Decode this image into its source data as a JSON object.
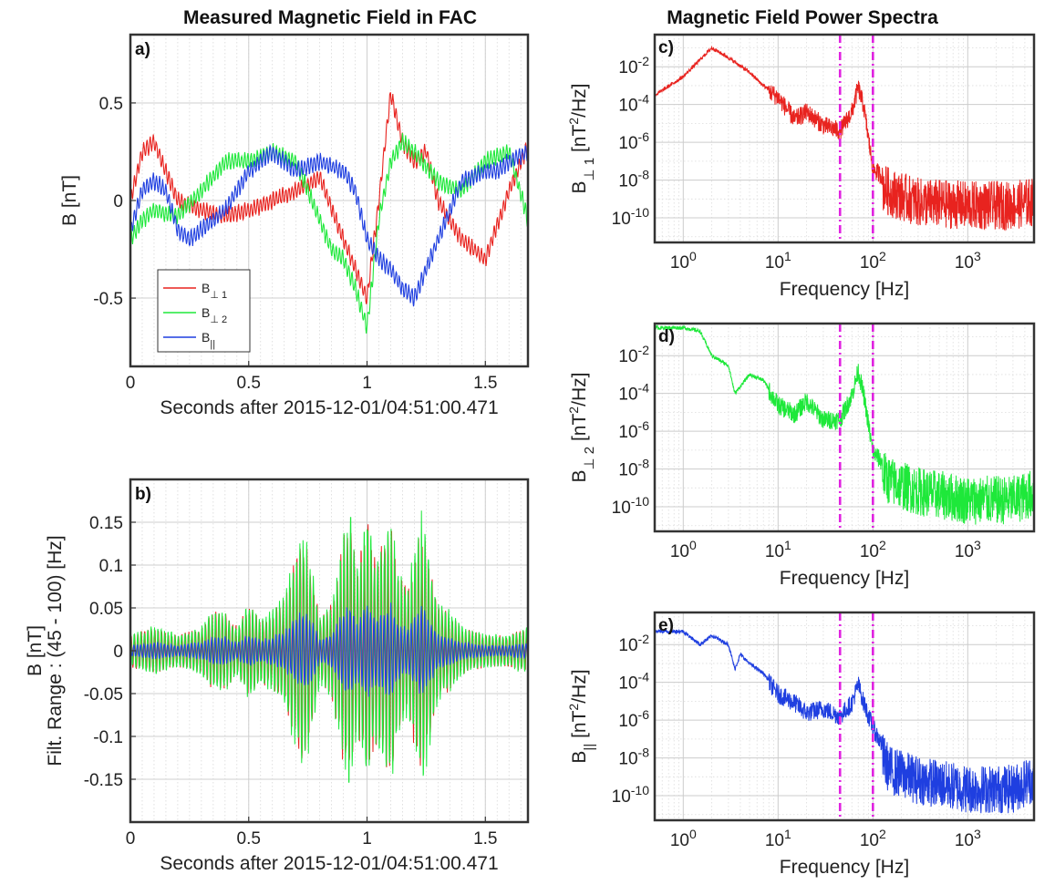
{
  "titles": {
    "left": "Measured Magnetic Field in FAC",
    "right": "Magnetic Field Power Spectra"
  },
  "colors": {
    "red": "#e8231f",
    "green": "#1ee83a",
    "blue": "#1f3fe0",
    "magenta": "#e022e0"
  },
  "chart_data": [
    {
      "panel": "a)",
      "type": "line",
      "xlabel": "Seconds after 2015-12-01/04:51:00.471",
      "ylabel": "B [nT]",
      "xlim": [
        0,
        1.68
      ],
      "ylim": [
        -0.85,
        0.85
      ],
      "xticks": [
        0,
        0.5,
        1,
        1.5
      ],
      "xtick_labels": [
        "0",
        "0.5",
        "1",
        "1.5"
      ],
      "yticks": [
        -0.5,
        0,
        0.5
      ],
      "ytick_labels": [
        "-0.5",
        "0",
        "0.5"
      ],
      "grid": true,
      "legend": "bottom-left",
      "series": [
        {
          "name": "B⊥ 1",
          "color": "red",
          "x": [
            0,
            0.05,
            0.1,
            0.15,
            0.2,
            0.3,
            0.4,
            0.5,
            0.6,
            0.7,
            0.8,
            0.9,
            0.95,
            1.0,
            1.05,
            1.1,
            1.15,
            1.2,
            1.25,
            1.3,
            1.4,
            1.5,
            1.6,
            1.68
          ],
          "y": [
            0.0,
            0.25,
            0.3,
            0.15,
            0.0,
            -0.05,
            -0.08,
            -0.05,
            0.0,
            0.05,
            0.12,
            -0.2,
            -0.35,
            -0.5,
            0.0,
            0.55,
            0.3,
            0.2,
            0.25,
            0.0,
            -0.2,
            -0.3,
            0.05,
            0.28
          ]
        },
        {
          "name": "B⊥ 2",
          "color": "green",
          "x": [
            0,
            0.05,
            0.1,
            0.2,
            0.3,
            0.4,
            0.5,
            0.6,
            0.7,
            0.8,
            0.85,
            0.9,
            0.95,
            1.0,
            1.05,
            1.1,
            1.15,
            1.2,
            1.3,
            1.4,
            1.5,
            1.6,
            1.68
          ],
          "y": [
            -0.2,
            -0.1,
            -0.05,
            -0.08,
            0.05,
            0.2,
            0.2,
            0.25,
            0.2,
            -0.1,
            -0.25,
            -0.3,
            -0.45,
            -0.65,
            -0.1,
            0.2,
            0.3,
            0.25,
            0.1,
            0.05,
            0.2,
            0.25,
            -0.1
          ]
        },
        {
          "name": "B||",
          "color": "blue",
          "x": [
            0,
            0.05,
            0.1,
            0.15,
            0.2,
            0.25,
            0.3,
            0.4,
            0.5,
            0.6,
            0.7,
            0.8,
            0.9,
            0.95,
            1.0,
            1.05,
            1.1,
            1.15,
            1.2,
            1.3,
            1.4,
            1.5,
            1.55,
            1.6,
            1.68
          ],
          "y": [
            -0.15,
            0.05,
            0.1,
            0.05,
            -0.15,
            -0.2,
            -0.15,
            -0.05,
            0.15,
            0.25,
            0.15,
            0.2,
            0.15,
            0.05,
            -0.2,
            -0.3,
            -0.35,
            -0.45,
            -0.5,
            -0.2,
            0.1,
            0.15,
            0.15,
            0.2,
            0.25
          ]
        }
      ]
    },
    {
      "panel": "b)",
      "type": "line",
      "xlabel": "Seconds after 2015-12-01/04:51:00.471",
      "ylabel": "B [nT]",
      "ylabel2": "Filt. Range : (45 - 100) [Hz]",
      "xlim": [
        0,
        1.68
      ],
      "ylim": [
        -0.2,
        0.2
      ],
      "xticks": [
        0,
        0.5,
        1,
        1.5
      ],
      "xtick_labels": [
        "0",
        "0.5",
        "1",
        "1.5"
      ],
      "yticks": [
        -0.15,
        -0.1,
        -0.05,
        0,
        0.05,
        0.1,
        0.15
      ],
      "ytick_labels": [
        "-0.15",
        "-0.1",
        "-0.05",
        "0",
        "0.05",
        "0.1",
        "0.15"
      ],
      "grid": true,
      "envelope": {
        "t": [
          0,
          0.1,
          0.2,
          0.3,
          0.35,
          0.4,
          0.45,
          0.5,
          0.55,
          0.6,
          0.65,
          0.7,
          0.73,
          0.77,
          0.8,
          0.85,
          0.9,
          0.93,
          0.96,
          1.0,
          1.03,
          1.07,
          1.1,
          1.13,
          1.17,
          1.2,
          1.23,
          1.27,
          1.3,
          1.35,
          1.4,
          1.5,
          1.6,
          1.68
        ],
        "amp": [
          0.02,
          0.03,
          0.02,
          0.03,
          0.05,
          0.05,
          0.03,
          0.06,
          0.04,
          0.05,
          0.07,
          0.12,
          0.15,
          0.1,
          0.04,
          0.06,
          0.14,
          0.17,
          0.1,
          0.18,
          0.12,
          0.14,
          0.17,
          0.1,
          0.08,
          0.12,
          0.17,
          0.11,
          0.06,
          0.05,
          0.03,
          0.02,
          0.02,
          0.03
        ]
      },
      "series": [
        {
          "name": "",
          "color": "red"
        },
        {
          "name": "",
          "color": "green"
        },
        {
          "name": "",
          "color": "blue"
        }
      ]
    },
    {
      "panel": "c)",
      "type": "line",
      "scale": "log-log",
      "xlabel": "Frequency [Hz]",
      "ylabel": "B⊥ 1 [nT²/Hz]",
      "xlim": [
        0.5,
        5000
      ],
      "ylim": [
        5e-12,
        0.5
      ],
      "xtick_exps": [
        0,
        1,
        2,
        3
      ],
      "ytick_exps": [
        -10,
        -8,
        -6,
        -4,
        -2
      ],
      "vlines": [
        45,
        100
      ],
      "grid": true,
      "color": "red",
      "hf_noise": [
        1e-09,
        2e-08
      ],
      "x": [
        0.5,
        1,
        2,
        3,
        5,
        7,
        10,
        15,
        20,
        30,
        45,
        60,
        70,
        80,
        100,
        150,
        300,
        1000,
        3000,
        4500
      ],
      "y": [
        0.0003,
        0.003,
        0.1,
        0.03,
        0.005,
        0.001,
        0.0003,
        2e-05,
        5e-05,
        1e-05,
        5e-06,
        5e-05,
        0.001,
        0.0001,
        5e-08,
        1e-08,
        3e-09,
        2e-09,
        2e-09,
        3e-09
      ]
    },
    {
      "panel": "d)",
      "type": "line",
      "scale": "log-log",
      "xlabel": "Frequency [Hz]",
      "ylabel": "B⊥ 2 [nT²/Hz]",
      "xlim": [
        0.5,
        5000
      ],
      "ylim": [
        5e-12,
        0.5
      ],
      "xtick_exps": [
        0,
        1,
        2,
        3
      ],
      "ytick_exps": [
        -10,
        -8,
        -6,
        -4,
        -2
      ],
      "vlines": [
        45,
        100
      ],
      "grid": true,
      "color": "green",
      "hf_noise": [
        5e-10,
        8e-09
      ],
      "x": [
        0.5,
        1,
        1.5,
        2,
        3,
        3.5,
        5,
        7,
        10,
        15,
        20,
        30,
        45,
        60,
        70,
        80,
        100,
        150,
        300,
        1000,
        3000,
        4500
      ],
      "y": [
        0.3,
        0.3,
        0.2,
        0.01,
        0.003,
        0.0001,
        0.001,
        0.0005,
        3e-05,
        1e-05,
        5e-05,
        5e-06,
        5e-06,
        0.0001,
        0.002,
        0.0001,
        1e-07,
        1e-08,
        3e-09,
        1e-09,
        1e-09,
        2e-09
      ]
    },
    {
      "panel": "e)",
      "type": "line",
      "scale": "log-log",
      "xlabel": "Frequency [Hz]",
      "ylabel": "B|| [nT²/Hz]",
      "xlim": [
        0.5,
        5000
      ],
      "ylim": [
        5e-12,
        0.5
      ],
      "xtick_exps": [
        0,
        1,
        2,
        3
      ],
      "ytick_exps": [
        -10,
        -8,
        -6,
        -4,
        -2
      ],
      "vlines": [
        45,
        100
      ],
      "grid": true,
      "color": "blue",
      "hf_noise": [
        3e-10,
        5e-09
      ],
      "x": [
        0.5,
        1,
        1.5,
        2,
        3,
        3.5,
        4,
        5,
        7,
        10,
        15,
        20,
        30,
        45,
        60,
        70,
        80,
        100,
        150,
        300,
        1000,
        3000,
        4500
      ],
      "y": [
        0.05,
        0.05,
        0.01,
        0.03,
        0.01,
        0.0005,
        0.003,
        0.001,
        0.0003,
        3e-05,
        1e-05,
        3e-06,
        5e-06,
        2e-06,
        1e-05,
        0.0001,
        1e-05,
        5e-07,
        1e-08,
        3e-09,
        1e-09,
        1e-09,
        3e-09
      ]
    }
  ]
}
